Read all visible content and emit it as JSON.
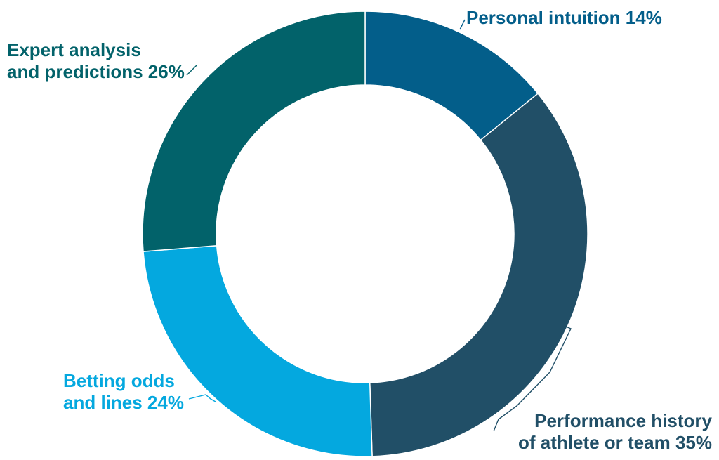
{
  "chart_data": {
    "type": "pie",
    "donut": true,
    "title": "",
    "slices": [
      {
        "label_lines": [
          "Personal intuition 14%"
        ],
        "value": 14,
        "color": "#035e8a"
      },
      {
        "label_lines": [
          "Performance history",
          "of athlete or team 35%"
        ],
        "value": 35,
        "color": "#214f67"
      },
      {
        "label_lines": [
          "Betting odds",
          "and lines 24%"
        ],
        "value": 24,
        "color": "#04a8df"
      },
      {
        "label_lines": [
          "Expert analysis",
          "and predictions 26%"
        ],
        "value": 26,
        "color": "#02626a"
      }
    ]
  }
}
